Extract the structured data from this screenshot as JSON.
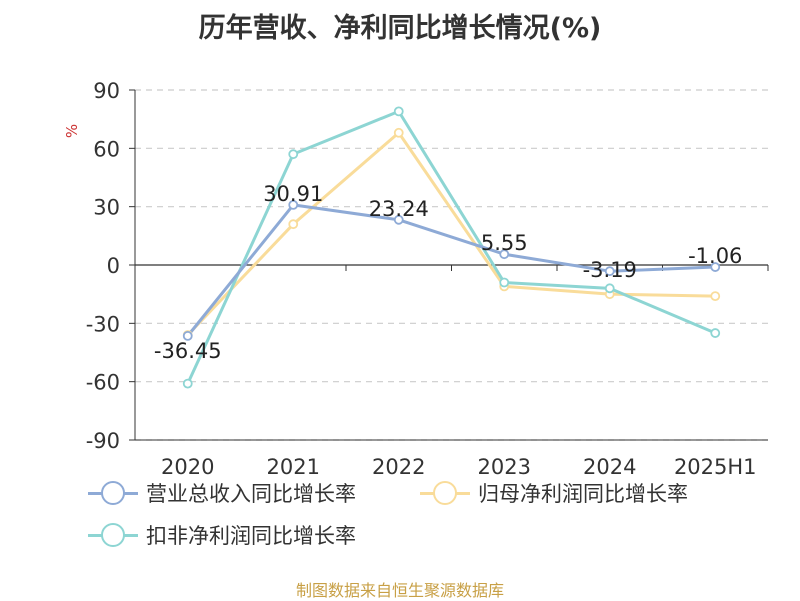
{
  "title": "历年营收、净利同比增长情况(%)",
  "footer": "制图数据来自恒生聚源数据库",
  "chart_data": {
    "type": "line",
    "ylabel": "%",
    "ylim": [
      -90,
      90
    ],
    "yticks": [
      90,
      60,
      30,
      0,
      -30,
      -60,
      -90
    ],
    "grid": true,
    "legend_position": "bottom-left",
    "categories": [
      "2020",
      "2021",
      "2022",
      "2023",
      "2024",
      "2025H1"
    ],
    "series": [
      {
        "name": "营业总收入同比增长率",
        "color": "#8eaad6",
        "values": [
          -36.45,
          30.91,
          23.24,
          5.55,
          -3.19,
          -1.06
        ],
        "labels": [
          "-36.45",
          "30.91",
          "23.24",
          "5.55",
          "-3.19",
          "-1.06"
        ]
      },
      {
        "name": "归母净利润同比增长率",
        "color": "#f9dc9a",
        "values": [
          -36,
          21,
          68,
          -11,
          -15,
          -16
        ]
      },
      {
        "name": "扣非净利润同比增长率",
        "color": "#8dd5d3",
        "values": [
          -61,
          57,
          79,
          -9,
          -12,
          -35
        ]
      }
    ]
  }
}
